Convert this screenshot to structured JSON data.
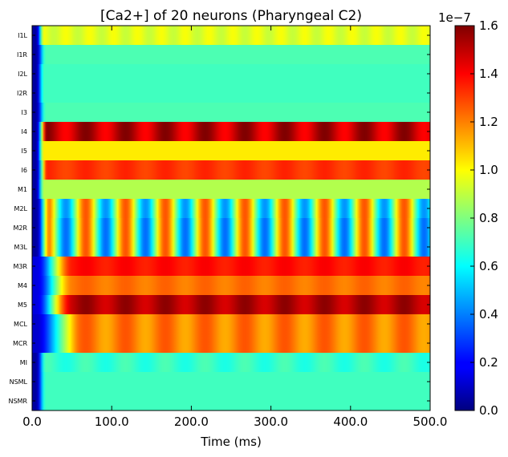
{
  "chart_data": {
    "type": "heatmap",
    "title": "[Ca2+] of 20 neurons (Pharyngeal C2)",
    "xlabel": "Time (ms)",
    "ylabel": "",
    "xlim": [
      0,
      500
    ],
    "x_ticks": [
      "0.0",
      "100.0",
      "200.0",
      "300.0",
      "400.0",
      "500.0"
    ],
    "colorbar": {
      "range": [
        0.0,
        1.6
      ],
      "exponent_label": "1e−7",
      "ticks": [
        "0.0",
        "0.2",
        "0.4",
        "0.6",
        "0.8",
        "1.0",
        "1.2",
        "1.4",
        "1.6"
      ],
      "colormap": "jet"
    },
    "rows": [
      {
        "name": "I1L",
        "start": 0.05,
        "rise": 10,
        "plateau": 0.95,
        "amp": 0.04,
        "period": 30
      },
      {
        "name": "I1R",
        "start": 0.05,
        "rise": 12,
        "plateau": 0.72,
        "amp": 0.0,
        "period": 30
      },
      {
        "name": "I2L",
        "start": 0.05,
        "rise": 10,
        "plateau": 0.7,
        "amp": 0.0,
        "period": 30
      },
      {
        "name": "I2R",
        "start": 0.05,
        "rise": 10,
        "plateau": 0.7,
        "amp": 0.0,
        "period": 30
      },
      {
        "name": "I3",
        "start": 0.05,
        "rise": 12,
        "plateau": 0.72,
        "amp": 0.0,
        "period": 30
      },
      {
        "name": "I4",
        "start": 0.05,
        "rise": 14,
        "plateau": 1.5,
        "amp": 0.1,
        "period": 50
      },
      {
        "name": "I5",
        "start": 0.05,
        "rise": 10,
        "plateau": 1.03,
        "amp": 0.0,
        "period": 30
      },
      {
        "name": "I6",
        "start": 0.05,
        "rise": 14,
        "plateau": 1.32,
        "amp": 0.03,
        "period": 50
      },
      {
        "name": "M1",
        "start": 0.05,
        "rise": 10,
        "plateau": 0.88,
        "amp": 0.0,
        "period": 30
      },
      {
        "name": "M2L",
        "start": 0.05,
        "rise": 18,
        "plateau": 0.85,
        "amp": 0.42,
        "period": 50
      },
      {
        "name": "M2R",
        "start": 0.05,
        "rise": 18,
        "plateau": 0.82,
        "amp": 0.45,
        "period": 50
      },
      {
        "name": "M3L",
        "start": 0.05,
        "rise": 18,
        "plateau": 0.82,
        "amp": 0.45,
        "period": 50
      },
      {
        "name": "M3R",
        "start": 0.15,
        "rise": 45,
        "plateau": 1.38,
        "amp": 0.03,
        "period": 50
      },
      {
        "name": "M4",
        "start": 0.15,
        "rise": 45,
        "plateau": 1.22,
        "amp": 0.03,
        "period": 50
      },
      {
        "name": "M5",
        "start": 0.15,
        "rise": 45,
        "plateau": 1.52,
        "amp": 0.06,
        "period": 50
      },
      {
        "name": "MCL",
        "start": 0.12,
        "rise": 55,
        "plateau": 1.2,
        "amp": 0.07,
        "period": 50
      },
      {
        "name": "MCR",
        "start": 0.12,
        "rise": 55,
        "plateau": 1.2,
        "amp": 0.07,
        "period": 50
      },
      {
        "name": "MI",
        "start": 0.05,
        "rise": 12,
        "plateau": 0.68,
        "amp": 0.04,
        "period": 50
      },
      {
        "name": "NSML",
        "start": 0.05,
        "rise": 12,
        "plateau": 0.7,
        "amp": 0.0,
        "period": 30
      },
      {
        "name": "NSMR",
        "start": 0.05,
        "rise": 12,
        "plateau": 0.7,
        "amp": 0.0,
        "period": 30
      }
    ]
  }
}
